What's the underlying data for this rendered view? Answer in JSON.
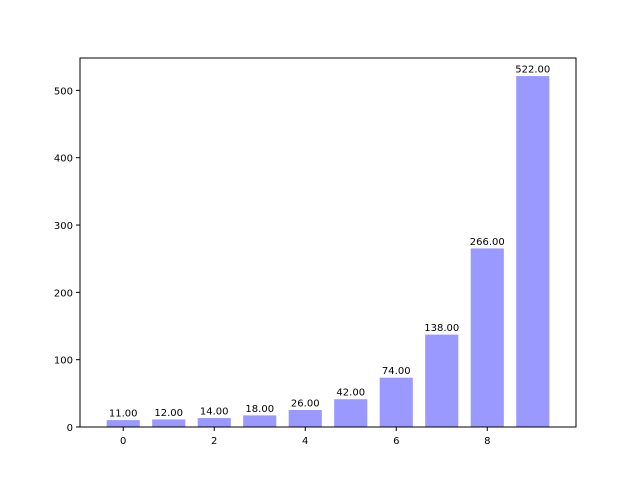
{
  "chart_data": {
    "type": "bar",
    "title": "",
    "xlabel": "",
    "ylabel": "",
    "x": [
      0,
      1,
      2,
      3,
      4,
      5,
      6,
      7,
      8,
      9
    ],
    "values": [
      11,
      12,
      14,
      18,
      26,
      42,
      74,
      138,
      266,
      522
    ],
    "data_labels": [
      "11.00",
      "12.00",
      "14.00",
      "18.00",
      "26.00",
      "42.00",
      "74.00",
      "138.00",
      "266.00",
      "522.00"
    ],
    "bar_width": 0.75,
    "xlim": [
      -0.95,
      9.95
    ],
    "ylim": [
      0,
      548.1
    ],
    "xticks": [
      0,
      2,
      4,
      6,
      8
    ],
    "xtick_labels": [
      "0",
      "2",
      "4",
      "6",
      "8"
    ],
    "yticks": [
      0,
      100,
      200,
      300,
      400,
      500
    ],
    "ytick_labels": [
      "0",
      "100",
      "200",
      "300",
      "400",
      "500"
    ],
    "grid": false,
    "legend": "none",
    "bar_color": "#9999ff",
    "bar_edge_color": "#ffffff"
  }
}
